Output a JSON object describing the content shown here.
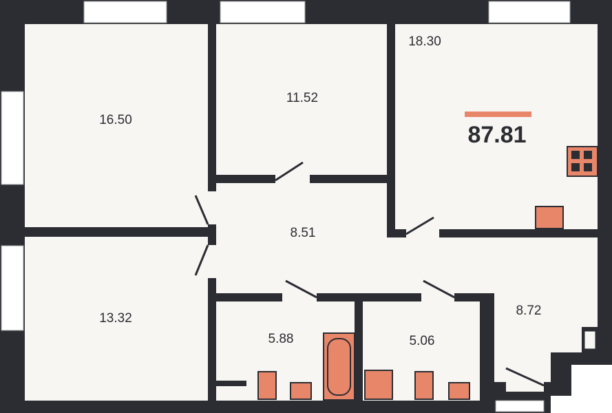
{
  "total_area": "87.81",
  "rooms": [
    {
      "area": "16.50"
    },
    {
      "area": "11.52"
    },
    {
      "area": "18.30"
    },
    {
      "area": "8.51"
    },
    {
      "area": "13.32"
    },
    {
      "area": "5.88"
    },
    {
      "area": "5.06"
    },
    {
      "area": "8.72"
    }
  ]
}
